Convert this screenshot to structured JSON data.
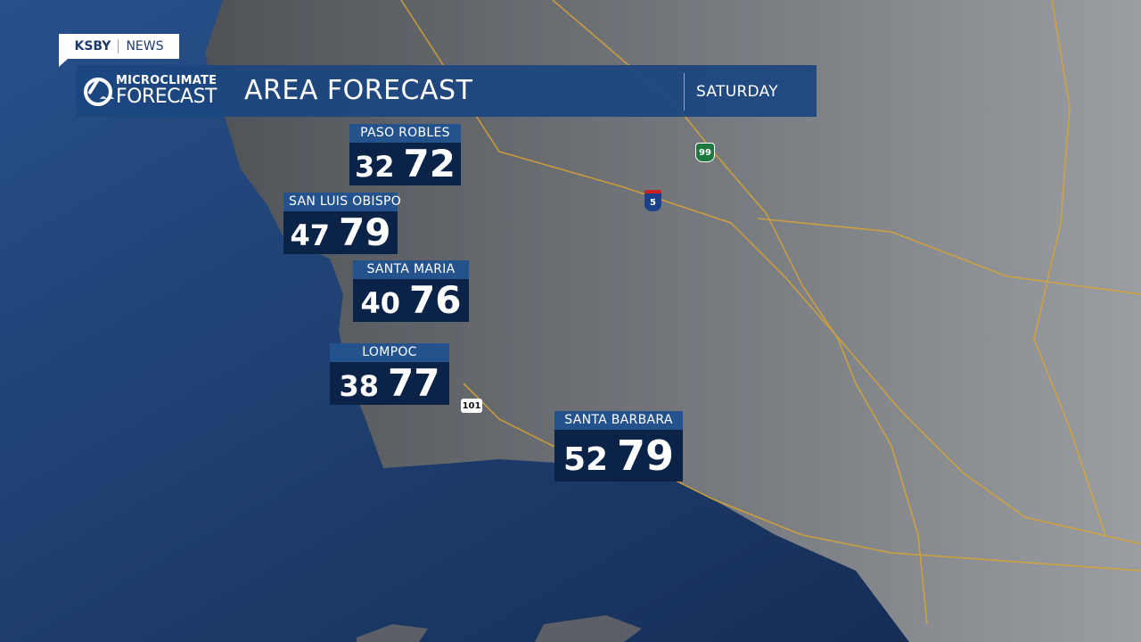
{
  "brand": {
    "station": "KSBY",
    "section": "NEWS",
    "logo_line1": "MICROCLIMATE",
    "logo_line2": "FORECAST"
  },
  "header": {
    "title": "AREA FORECAST",
    "day": "SATURDAY"
  },
  "cities": [
    {
      "name": "PASO ROBLES",
      "low": "32",
      "high": "72"
    },
    {
      "name": "SAN LUIS OBISPO",
      "low": "47",
      "high": "79"
    },
    {
      "name": "SANTA MARIA",
      "low": "40",
      "high": "76"
    },
    {
      "name": "LOMPOC",
      "low": "38",
      "high": "77"
    },
    {
      "name": "SANTA BARBARA",
      "low": "52",
      "high": "79"
    }
  ],
  "highways": [
    {
      "label": "99",
      "icon": "state-route-shield-icon"
    },
    {
      "label": "5",
      "icon": "interstate-shield-icon"
    },
    {
      "label": "101",
      "icon": "us-route-shield-icon"
    }
  ],
  "colors": {
    "ocean": "#1c3a6a",
    "land": "#6e7278",
    "banner": "#1b4680",
    "label": "#23528c",
    "value_box": "#0c2348",
    "roads": "#d9a531"
  }
}
